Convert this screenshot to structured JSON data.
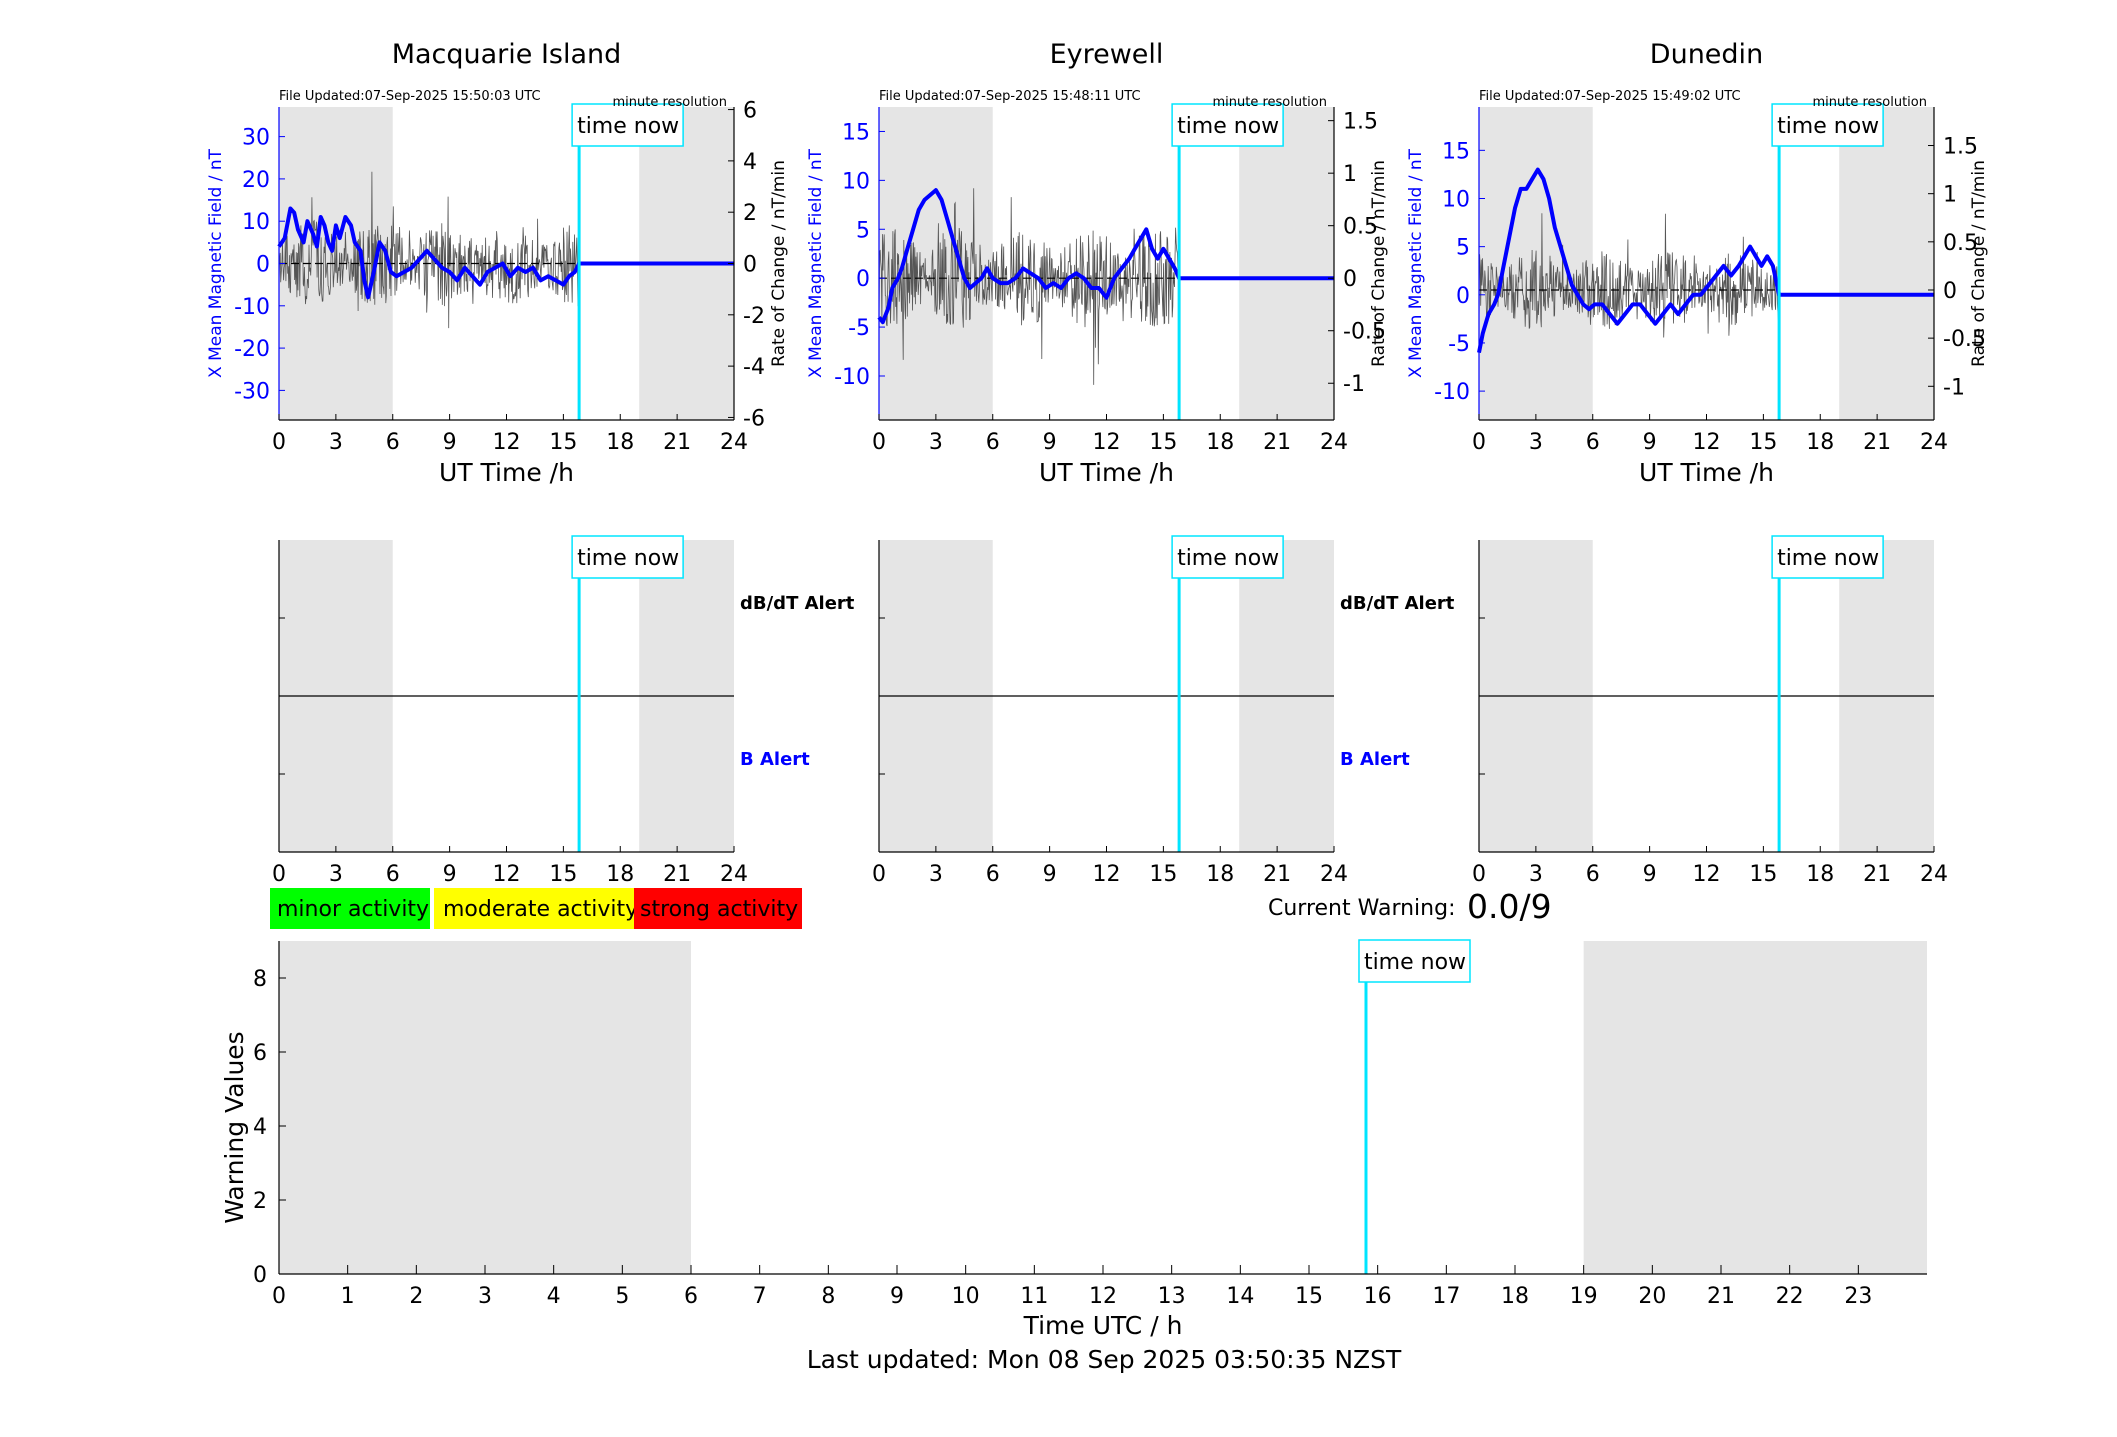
{
  "footer": {
    "last_updated": "Last updated: Mon 08 Sep 2025 03:50:35 NZST"
  },
  "colors": {
    "field_line": "#0000ff",
    "rate_line": "#555555",
    "time_now": "#00e5ff",
    "night_shading": "#e5e5e5",
    "minor": "#00ff00",
    "moderate": "#ffff00",
    "strong": "#ff0000"
  },
  "legend": {
    "minor": "minor activity",
    "moderate": "moderate activity",
    "strong": "strong activity"
  },
  "current_warning": {
    "label": "Current Warning:",
    "value": "0.0/9"
  },
  "time_now_label": "time now",
  "time_now_hours": 15.83,
  "chart_data": [
    {
      "type": "line",
      "title": "Macquarie Island",
      "file_updated": "File Updated:07-Sep-2025 15:50:03 UTC",
      "resolution": "minute resolution",
      "xlabel": "UT Time /h",
      "ylabel": "X Mean Magnetic Field / nT",
      "y2label": "Rate of Change / nT/min",
      "xlim": [
        0,
        24
      ],
      "xticks": [
        0,
        3,
        6,
        9,
        12,
        15,
        18,
        21,
        24
      ],
      "ylim": [
        -37,
        37
      ],
      "yticks": [
        -30,
        -20,
        -10,
        0,
        10,
        20,
        30
      ],
      "y2lim": [
        -6.1,
        6.1
      ],
      "y2ticks": [
        -6,
        -4,
        -2,
        0,
        2,
        4,
        6
      ],
      "shaded_ranges": [
        [
          0,
          6
        ],
        [
          19,
          24
        ]
      ],
      "rate_amplitude": 1.2,
      "field": {
        "name": "X Mean Magnetic Field",
        "x": [
          0,
          0.3,
          0.6,
          0.8,
          1.0,
          1.3,
          1.5,
          1.8,
          2.0,
          2.2,
          2.4,
          2.6,
          2.8,
          3.0,
          3.2,
          3.5,
          3.8,
          4.0,
          4.3,
          4.5,
          4.7,
          5.0,
          5.3,
          5.6,
          5.9,
          6.2,
          6.6,
          7.0,
          7.4,
          7.8,
          8.2,
          8.6,
          9.0,
          9.4,
          9.8,
          10.2,
          10.6,
          11.0,
          11.4,
          11.8,
          12.2,
          12.6,
          13.0,
          13.4,
          13.8,
          14.2,
          14.6,
          15.0,
          15.3,
          15.6,
          15.83,
          16.2,
          18,
          21,
          24
        ],
        "y": [
          4,
          6,
          13,
          12,
          8,
          5,
          10,
          7,
          4,
          11,
          9,
          5,
          3,
          9,
          6,
          11,
          9,
          5,
          3,
          -4,
          -8,
          -2,
          5,
          3,
          -2,
          -3,
          -2,
          -1,
          1,
          3,
          1,
          -1,
          -2,
          -4,
          -1,
          -3,
          -5,
          -2,
          -1,
          0,
          -3,
          -1,
          -2,
          -1,
          -4,
          -3,
          -4,
          -5,
          -3,
          -2,
          0,
          0,
          0,
          0,
          0
        ]
      },
      "rate": {
        "name": "Rate of Change",
        "x_range": [
          0,
          15.83
        ],
        "zero": 0
      }
    },
    {
      "type": "line",
      "title": "Eyrewell",
      "file_updated": "File Updated:07-Sep-2025 15:48:11 UTC",
      "resolution": "minute resolution",
      "xlabel": "UT Time /h",
      "ylabel": "X Mean Magnetic Field / nT",
      "y2label": "Rate of Change / nT/min",
      "xlim": [
        0,
        24
      ],
      "xticks": [
        0,
        3,
        6,
        9,
        12,
        15,
        18,
        21,
        24
      ],
      "ylim": [
        -14.5,
        17.5
      ],
      "yticks": [
        -10,
        -5,
        0,
        5,
        10,
        15
      ],
      "y2lim": [
        -1.35,
        1.63
      ],
      "y2ticks": [
        -1,
        -0.5,
        0,
        0.5,
        1,
        1.5
      ],
      "shaded_ranges": [
        [
          0,
          6
        ],
        [
          19,
          24
        ]
      ],
      "rate_amplitude": 0.35,
      "field": {
        "name": "X Mean Magnetic Field",
        "x": [
          0,
          0.2,
          0.5,
          0.7,
          1.0,
          1.2,
          1.5,
          1.8,
          2.1,
          2.4,
          2.7,
          3.0,
          3.3,
          3.6,
          3.9,
          4.2,
          4.5,
          4.8,
          5.1,
          5.4,
          5.7,
          6.0,
          6.4,
          6.8,
          7.2,
          7.6,
          8.0,
          8.4,
          8.8,
          9.2,
          9.6,
          10.0,
          10.4,
          10.8,
          11.2,
          11.6,
          12.0,
          12.4,
          12.8,
          13.2,
          13.5,
          13.8,
          14.1,
          14.4,
          14.7,
          15.0,
          15.3,
          15.6,
          15.83,
          16.2,
          18,
          21,
          24
        ],
        "y": [
          -4,
          -4.5,
          -3,
          -1,
          0,
          1,
          3,
          5,
          7,
          8,
          8.5,
          9,
          8,
          6,
          4,
          2,
          0,
          -1,
          -0.5,
          0,
          1,
          0,
          -0.5,
          -0.5,
          0,
          1,
          0.5,
          0,
          -1,
          -0.5,
          -1,
          0,
          0.5,
          0,
          -1,
          -1,
          -2,
          0,
          1,
          2,
          3,
          4,
          5,
          3,
          2,
          3,
          2,
          1,
          0,
          0,
          0,
          0,
          0
        ]
      },
      "rate": {
        "name": "Rate of Change",
        "x_range": [
          0,
          15.83
        ],
        "zero": 0
      }
    },
    {
      "type": "line",
      "title": "Dunedin",
      "file_updated": "File Updated:07-Sep-2025 15:49:02 UTC",
      "resolution": "minute resolution",
      "xlabel": "UT Time /h",
      "ylabel": "X Mean Magnetic Field / nT",
      "y2label": "Rate of Change / nT/min",
      "xlim": [
        0,
        24
      ],
      "xticks": [
        0,
        3,
        6,
        9,
        12,
        15,
        18,
        21,
        24
      ],
      "ylim": [
        -13,
        19.5
      ],
      "yticks": [
        -10,
        -5,
        0,
        5,
        10,
        15
      ],
      "y2lim": [
        -1.35,
        1.9
      ],
      "y2ticks": [
        -1,
        -0.5,
        0,
        0.5,
        1,
        1.5
      ],
      "shaded_ranges": [
        [
          0,
          6
        ],
        [
          19,
          24
        ]
      ],
      "rate_amplitude": 0.3,
      "field": {
        "name": "X Mean Magnetic Field",
        "x": [
          0,
          0.2,
          0.5,
          0.8,
          1.0,
          1.3,
          1.6,
          1.9,
          2.2,
          2.5,
          2.8,
          3.1,
          3.4,
          3.7,
          4.0,
          4.3,
          4.6,
          4.9,
          5.2,
          5.5,
          5.8,
          6.1,
          6.5,
          6.9,
          7.3,
          7.7,
          8.1,
          8.5,
          8.9,
          9.3,
          9.7,
          10.1,
          10.5,
          10.9,
          11.3,
          11.7,
          12.1,
          12.5,
          12.9,
          13.3,
          13.7,
          14.0,
          14.3,
          14.6,
          14.9,
          15.2,
          15.5,
          15.83,
          16.2,
          18,
          21,
          24
        ],
        "y": [
          -6,
          -4,
          -2,
          -1,
          0,
          3,
          6,
          9,
          11,
          11,
          12,
          13,
          12,
          10,
          7,
          5,
          3,
          1,
          0,
          -1,
          -1.5,
          -1,
          -1,
          -2,
          -3,
          -2,
          -1,
          -1,
          -2,
          -3,
          -2,
          -1,
          -2,
          -1,
          0,
          0,
          1,
          2,
          3,
          2,
          3,
          4,
          5,
          4,
          3,
          4,
          3,
          0,
          0,
          0,
          0,
          0
        ]
      },
      "rate": {
        "name": "Rate of Change",
        "x_range": [
          0,
          15.83
        ],
        "zero": 0
      }
    },
    {
      "type": "line",
      "title": "",
      "panel": "alerts",
      "station": "Macquarie Island",
      "xlim": [
        0,
        24
      ],
      "xticks": [
        0,
        3,
        6,
        9,
        12,
        15,
        18,
        21,
        24
      ],
      "shaded_ranges": [
        [
          0,
          6
        ],
        [
          19,
          24
        ]
      ],
      "upper_label": "dB/dT Alert",
      "lower_label": "B Alert"
    },
    {
      "type": "line",
      "title": "",
      "panel": "alerts",
      "station": "Eyrewell",
      "xlim": [
        0,
        24
      ],
      "xticks": [
        0,
        3,
        6,
        9,
        12,
        15,
        18,
        21,
        24
      ],
      "shaded_ranges": [
        [
          0,
          6
        ],
        [
          19,
          24
        ]
      ],
      "upper_label": "dB/dT Alert",
      "lower_label": "B Alert"
    },
    {
      "type": "line",
      "title": "",
      "panel": "alerts",
      "station": "Dunedin",
      "xlim": [
        0,
        24
      ],
      "xticks": [
        0,
        3,
        6,
        9,
        12,
        15,
        18,
        21,
        24
      ],
      "shaded_ranges": [
        [
          0,
          6
        ],
        [
          19,
          24
        ]
      ],
      "upper_label": "",
      "lower_label": ""
    },
    {
      "type": "bar",
      "title": "",
      "panel": "warning",
      "xlabel": "Time UTC / h",
      "ylabel": "Warning Values",
      "xlim": [
        0,
        24
      ],
      "xticks": [
        0,
        1,
        2,
        3,
        4,
        5,
        6,
        7,
        8,
        9,
        10,
        11,
        12,
        13,
        14,
        15,
        16,
        17,
        18,
        19,
        20,
        21,
        22,
        23
      ],
      "ylim": [
        0,
        9
      ],
      "yticks": [
        0,
        2,
        4,
        6,
        8
      ],
      "shaded_ranges": [
        [
          0,
          6
        ],
        [
          19,
          24
        ]
      ],
      "values": []
    }
  ]
}
